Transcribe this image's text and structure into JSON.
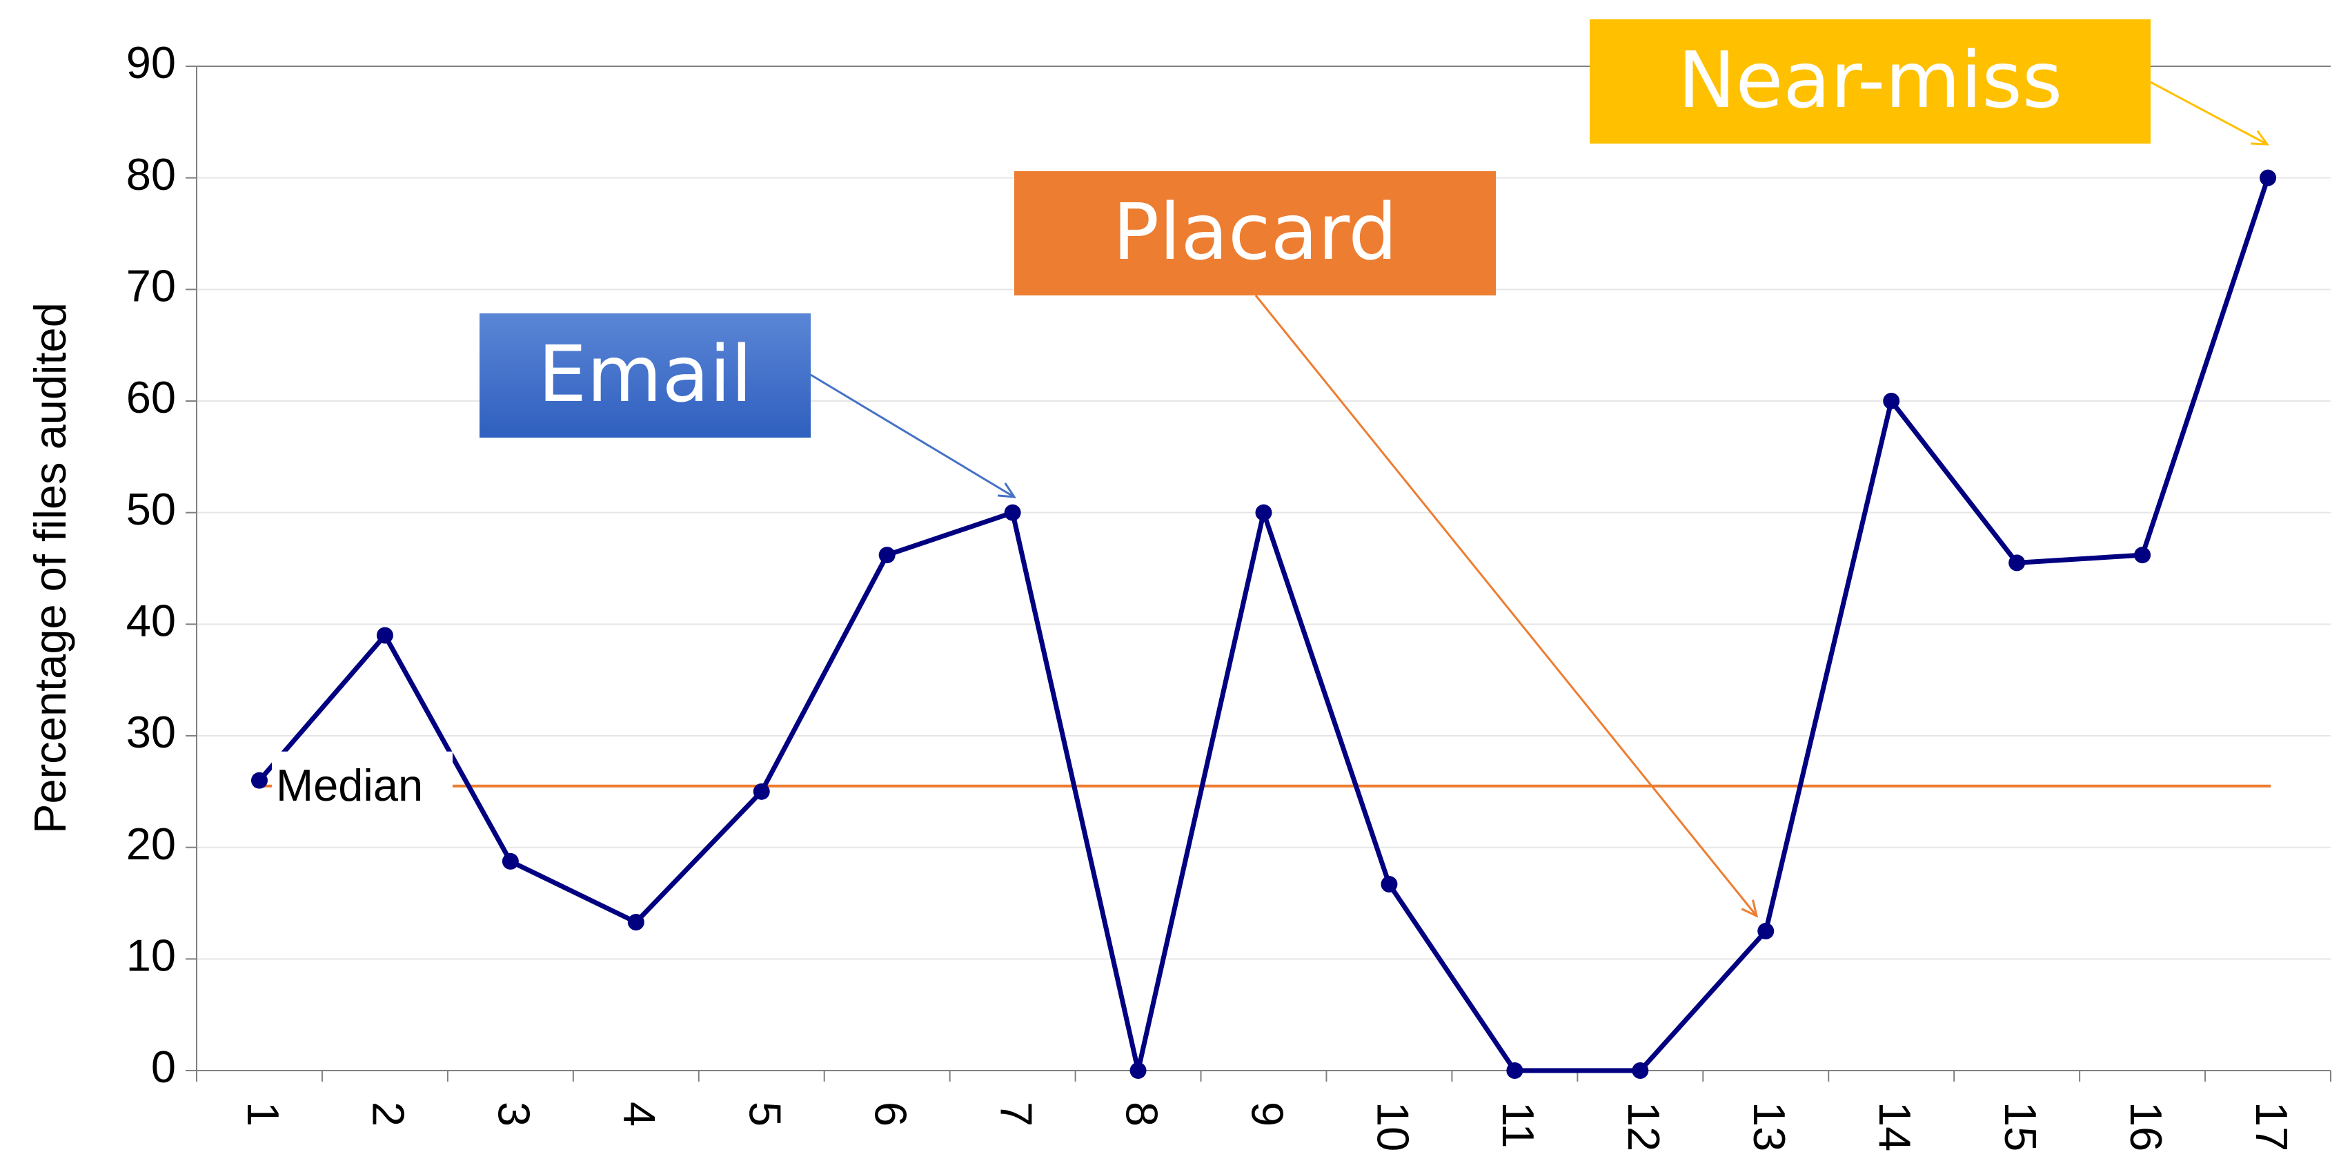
{
  "chart_data": {
    "type": "line",
    "y_label": "Percentage of files audited",
    "categories": [
      "1",
      "2",
      "3",
      "4",
      "5",
      "6",
      "7",
      "8",
      "9",
      "10",
      "11",
      "12",
      "13",
      "14",
      "15",
      "16",
      "17"
    ],
    "series": [
      {
        "name": "Percentage of files audited",
        "color": "#000080",
        "values": [
          26,
          39,
          18.75,
          13.3,
          25,
          46.2,
          50,
          0,
          50,
          16.7,
          0,
          0,
          12.5,
          60,
          45.5,
          46.2,
          80
        ]
      }
    ],
    "median": 25.5,
    "median_label": "Median",
    "median_color": "#ED7D31",
    "annotations": [
      {
        "text": "Email",
        "color": "#4472C4"
      },
      {
        "text": "Placard",
        "color": "#ED7D31"
      },
      {
        "text": "Near-miss",
        "color": "#FFC000"
      }
    ],
    "ylim": [
      0,
      90
    ],
    "yticks": [
      0,
      10,
      20,
      30,
      40,
      50,
      60,
      70,
      80,
      90
    ],
    "grid": true
  }
}
